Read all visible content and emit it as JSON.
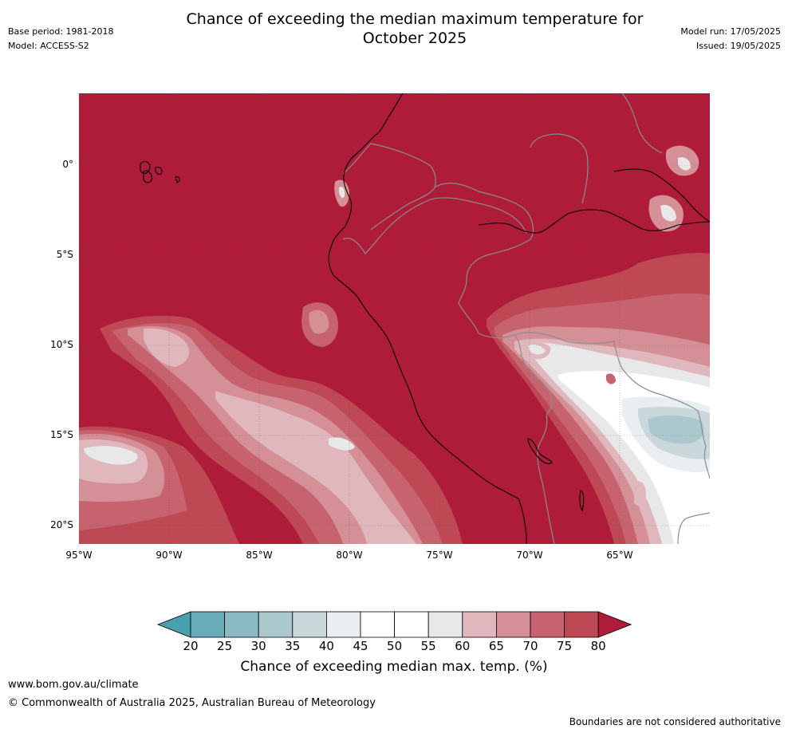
{
  "title": {
    "line1": "Chance of exceeding the median maximum temperature for",
    "line2": "October 2025"
  },
  "meta_left": {
    "base_period": "Base period: 1981-2018",
    "model": "Model: ACCESS-S2"
  },
  "meta_right": {
    "model_run": "Model run: 17/05/2025",
    "issued": "Issued: 19/05/2025"
  },
  "map": {
    "lat_labels": [
      "0°",
      "5°S",
      "10°S",
      "15°S",
      "20°S"
    ],
    "lon_labels": [
      "95°W",
      "90°W",
      "85°W",
      "80°W",
      "75°W",
      "70°W",
      "65°W"
    ]
  },
  "colorbar": {
    "tick_labels": [
      "20",
      "25",
      "30",
      "35",
      "40",
      "45",
      "50",
      "55",
      "60",
      "65",
      "70",
      "75",
      "80"
    ],
    "title": "Chance of exceeding median max. temp. (%)",
    "colors": {
      "below_20": "#4aa1ad",
      "20-25": "#67acb7",
      "25-30": "#8bbac2",
      "30-35": "#aac8cd",
      "35-40": "#cad8dc",
      "40-45": "#e9eef0",
      "45-50": "#ffffff",
      "50-55": "#ffffff",
      "55-60": "#e8e8e9",
      "60-65": "#e0b7bd",
      "65-70": "#d58f97",
      "70-75": "#c7636e",
      "75-80": "#be4955",
      "above_80": "#ae1c3a"
    }
  },
  "footer": {
    "url": "www.bom.gov.au/climate",
    "copyright": "© Commonwealth of Australia 2025, Australian Bureau of Meteorology",
    "disclaimer": "Boundaries are not considered authoritative"
  }
}
